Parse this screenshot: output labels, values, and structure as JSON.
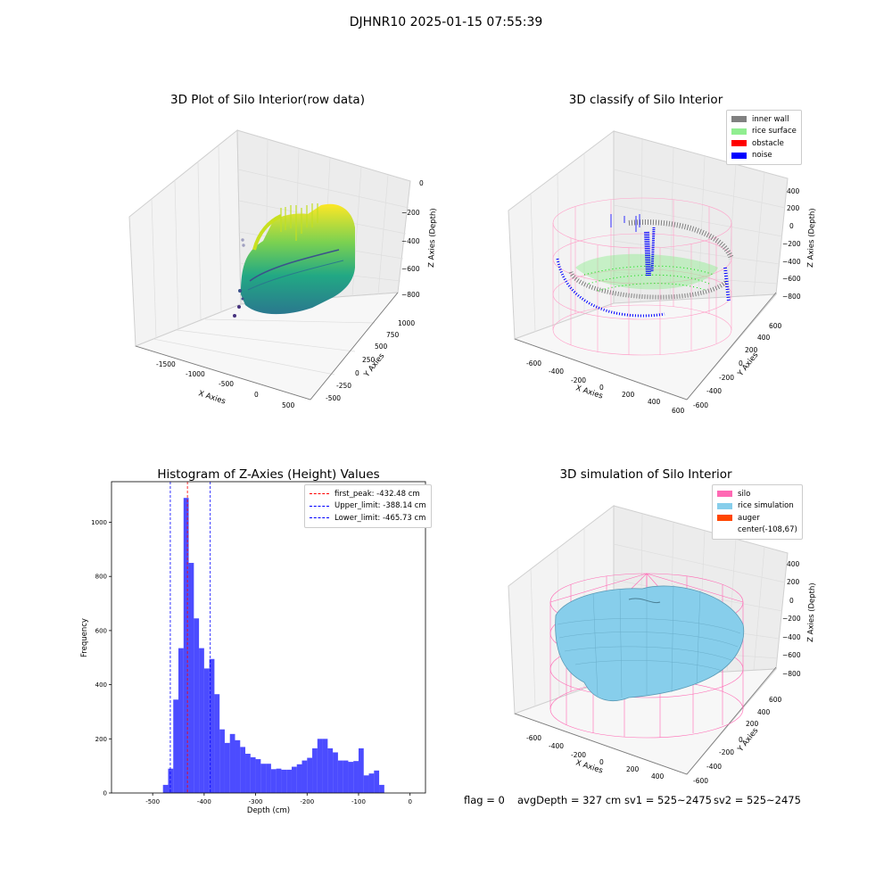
{
  "suptitle": "DJHNR10 2025-01-15 07:55:39",
  "plot1": {
    "title": "3D Plot of Silo Interior(row data)",
    "xlabel": "X Axies",
    "ylabel": "Y Axies",
    "zlabel": "Z Axies (Depth)",
    "xticks": [
      "-1500",
      "-1000",
      "-500",
      "0",
      "500"
    ],
    "yticks": [
      "-500",
      "-250",
      "0",
      "250",
      "500",
      "750",
      "1000"
    ],
    "zticks": [
      "0",
      "−200",
      "−400",
      "−600",
      "−800"
    ]
  },
  "plot2": {
    "title": "3D classify of Silo Interior",
    "xlabel": "X Axies",
    "ylabel": "Y Axies",
    "zlabel": "Z Axies (Depth)",
    "xticks": [
      "-600",
      "-400",
      "-200",
      "0",
      "200",
      "400",
      "600"
    ],
    "yticks": [
      "-600",
      "-400",
      "-200",
      "0",
      "200",
      "400",
      "600"
    ],
    "zticks": [
      "400",
      "200",
      "0",
      "−200",
      "−400",
      "−600",
      "−800"
    ],
    "legend": [
      {
        "label": "inner wall",
        "color": "#808080"
      },
      {
        "label": "rice surface",
        "color": "#90ee90"
      },
      {
        "label": "obstacle",
        "color": "#ff0000"
      },
      {
        "label": "noise",
        "color": "#0000ff"
      }
    ]
  },
  "plot4": {
    "title": "3D simulation of Silo Interior",
    "xlabel": "X Axies",
    "ylabel": "Y Axies",
    "zlabel": "Z Axies (Depth)",
    "xticks": [
      "-600",
      "-400",
      "-200",
      "0",
      "200",
      "400"
    ],
    "yticks": [
      "-600",
      "-400",
      "-200",
      "0",
      "200",
      "400",
      "600"
    ],
    "zticks": [
      "400",
      "200",
      "0",
      "−200",
      "−400",
      "−600",
      "−800"
    ],
    "legend": [
      {
        "label": "silo",
        "color": "#ff69b4"
      },
      {
        "label": "rice simulation",
        "color": "#87ceeb"
      },
      {
        "label": "auger",
        "color": "#ff4500"
      },
      {
        "label": "center(-108,67)",
        "color": ""
      }
    ]
  },
  "footer": {
    "flag": "flag = 0",
    "avg": "avgDepth = 327 cm",
    "sv1": "sv1 = 525~2475",
    "sv2": "sv2 = 525~2475"
  },
  "chart_data": {
    "type": "bar",
    "title": "Histogram of Z-Axies (Height) Values",
    "xlabel": "Depth (cm)",
    "ylabel": "Frequency",
    "xlim": [
      -580,
      30
    ],
    "ylim": [
      0,
      1150
    ],
    "xticks": [
      -500,
      -400,
      -300,
      -200,
      -100,
      0
    ],
    "yticks": [
      0,
      200,
      400,
      600,
      800,
      1000
    ],
    "bin_width": 10,
    "bins_start": [
      -480,
      -470,
      -460,
      -450,
      -440,
      -430,
      -420,
      -410,
      -400,
      -390,
      -380,
      -370,
      -360,
      -350,
      -340,
      -330,
      -320,
      -310,
      -300,
      -290,
      -280,
      -270,
      -260,
      -250,
      -240,
      -230,
      -220,
      -210,
      -200,
      -190,
      -180,
      -170,
      -160,
      -150,
      -140,
      -130,
      -120,
      -110,
      -100,
      -90,
      -80,
      -70,
      -60,
      -50,
      -40,
      -30,
      -20,
      -10
    ],
    "values": [
      30,
      90,
      345,
      535,
      1090,
      850,
      645,
      535,
      460,
      495,
      365,
      235,
      185,
      218,
      195,
      170,
      145,
      132,
      125,
      108,
      108,
      88,
      90,
      86,
      86,
      97,
      106,
      120,
      130,
      165,
      200,
      200,
      165,
      150,
      120,
      120,
      115,
      118,
      165,
      65,
      72,
      83,
      30,
      0,
      0,
      0,
      0,
      0
    ],
    "bar_color": "#0000ff",
    "vlines": [
      {
        "label": "first_peak: -432.48 cm",
        "x": -432.48,
        "color": "#ff0000"
      },
      {
        "label": "Upper_limit: -388.14 cm",
        "x": -388.14,
        "color": "#0000ff"
      },
      {
        "label": "Lower_limit: -465.73 cm",
        "x": -465.73,
        "color": "#0000ff"
      }
    ],
    "legend": "top-right"
  }
}
